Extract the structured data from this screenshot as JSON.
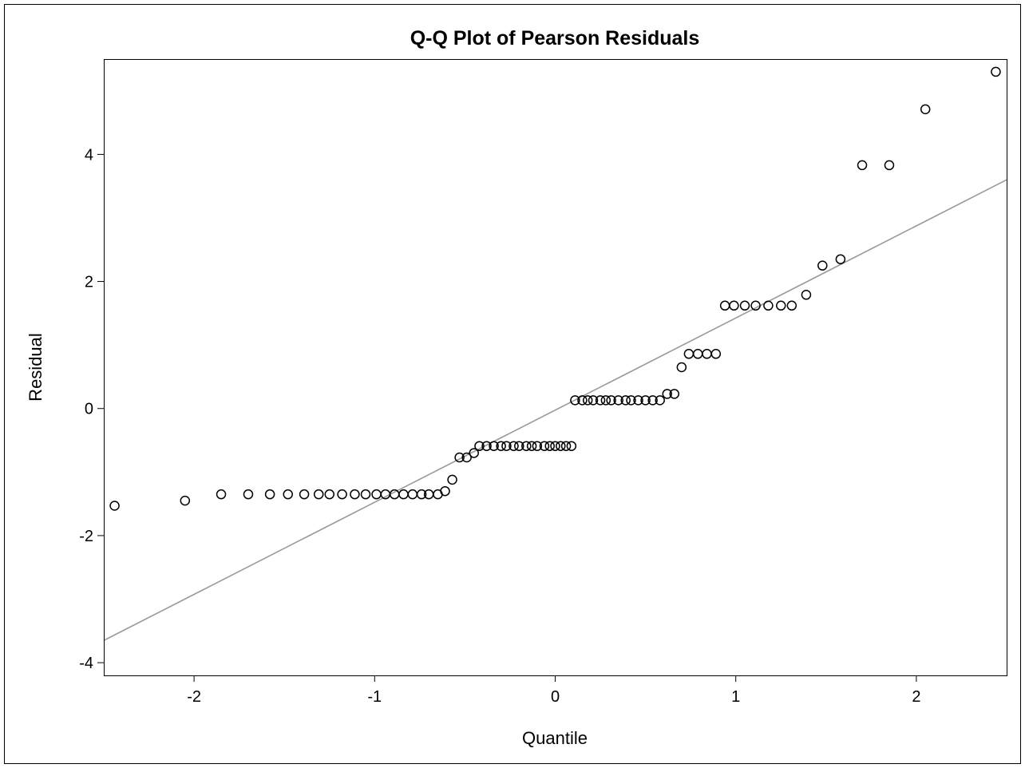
{
  "chart_data": {
    "type": "scatter",
    "title": "Q-Q Plot of Pearson Residuals",
    "xlabel": "Quantile",
    "ylabel": "Residual",
    "xlim": [
      -2.5,
      2.5
    ],
    "ylim": [
      -4.2,
      5.5
    ],
    "x_ticks": [
      -2,
      -1,
      0,
      1,
      2
    ],
    "y_ticks": [
      -4,
      -2,
      0,
      2,
      4
    ],
    "grid": false,
    "legend": "none",
    "colors": {
      "marker": "#000000",
      "reference_line": "#999999",
      "frame": "#000000"
    },
    "reference_line": {
      "points": [
        [
          -2.5,
          -3.65
        ],
        [
          2.5,
          3.6
        ]
      ]
    },
    "series": [
      {
        "points": [
          [
            -2.44,
            -1.53
          ],
          [
            -2.05,
            -1.45
          ],
          [
            -1.85,
            -1.35
          ],
          [
            -1.7,
            -1.35
          ],
          [
            -1.58,
            -1.35
          ],
          [
            -1.48,
            -1.35
          ],
          [
            -1.39,
            -1.35
          ],
          [
            -1.31,
            -1.35
          ],
          [
            -1.25,
            -1.35
          ],
          [
            -1.18,
            -1.35
          ],
          [
            -1.11,
            -1.35
          ],
          [
            -1.05,
            -1.35
          ],
          [
            -0.99,
            -1.35
          ],
          [
            -0.94,
            -1.35
          ],
          [
            -0.89,
            -1.35
          ],
          [
            -0.84,
            -1.35
          ],
          [
            -0.79,
            -1.35
          ],
          [
            -0.74,
            -1.35
          ],
          [
            -0.7,
            -1.35
          ],
          [
            -0.65,
            -1.35
          ],
          [
            -0.61,
            -1.3
          ],
          [
            -0.57,
            -1.12
          ],
          [
            -0.53,
            -0.77
          ],
          [
            -0.49,
            -0.77
          ],
          [
            -0.45,
            -0.7
          ],
          [
            -0.42,
            -0.59
          ],
          [
            -0.38,
            -0.59
          ],
          [
            -0.34,
            -0.59
          ],
          [
            -0.3,
            -0.59
          ],
          [
            -0.27,
            -0.59
          ],
          [
            -0.23,
            -0.59
          ],
          [
            -0.2,
            -0.59
          ],
          [
            -0.16,
            -0.59
          ],
          [
            -0.13,
            -0.59
          ],
          [
            -0.1,
            -0.59
          ],
          [
            -0.06,
            -0.59
          ],
          [
            -0.03,
            -0.59
          ],
          [
            0.0,
            -0.59
          ],
          [
            0.03,
            -0.59
          ],
          [
            0.06,
            -0.59
          ],
          [
            0.09,
            -0.59
          ],
          [
            0.11,
            0.13
          ],
          [
            0.15,
            0.13
          ],
          [
            0.18,
            0.13
          ],
          [
            0.21,
            0.13
          ],
          [
            0.25,
            0.13
          ],
          [
            0.28,
            0.13
          ],
          [
            0.31,
            0.13
          ],
          [
            0.35,
            0.13
          ],
          [
            0.39,
            0.13
          ],
          [
            0.42,
            0.13
          ],
          [
            0.46,
            0.13
          ],
          [
            0.5,
            0.13
          ],
          [
            0.54,
            0.13
          ],
          [
            0.58,
            0.13
          ],
          [
            0.62,
            0.23
          ],
          [
            0.66,
            0.23
          ],
          [
            0.7,
            0.65
          ],
          [
            0.74,
            0.86
          ],
          [
            0.79,
            0.86
          ],
          [
            0.84,
            0.86
          ],
          [
            0.89,
            0.86
          ],
          [
            0.94,
            1.62
          ],
          [
            0.99,
            1.62
          ],
          [
            1.05,
            1.62
          ],
          [
            1.11,
            1.62
          ],
          [
            1.18,
            1.62
          ],
          [
            1.25,
            1.62
          ],
          [
            1.31,
            1.62
          ],
          [
            1.39,
            1.79
          ],
          [
            1.48,
            2.25
          ],
          [
            1.58,
            2.35
          ],
          [
            1.7,
            3.83
          ],
          [
            1.85,
            3.83
          ],
          [
            2.05,
            4.71
          ],
          [
            2.44,
            5.3
          ]
        ]
      }
    ]
  }
}
